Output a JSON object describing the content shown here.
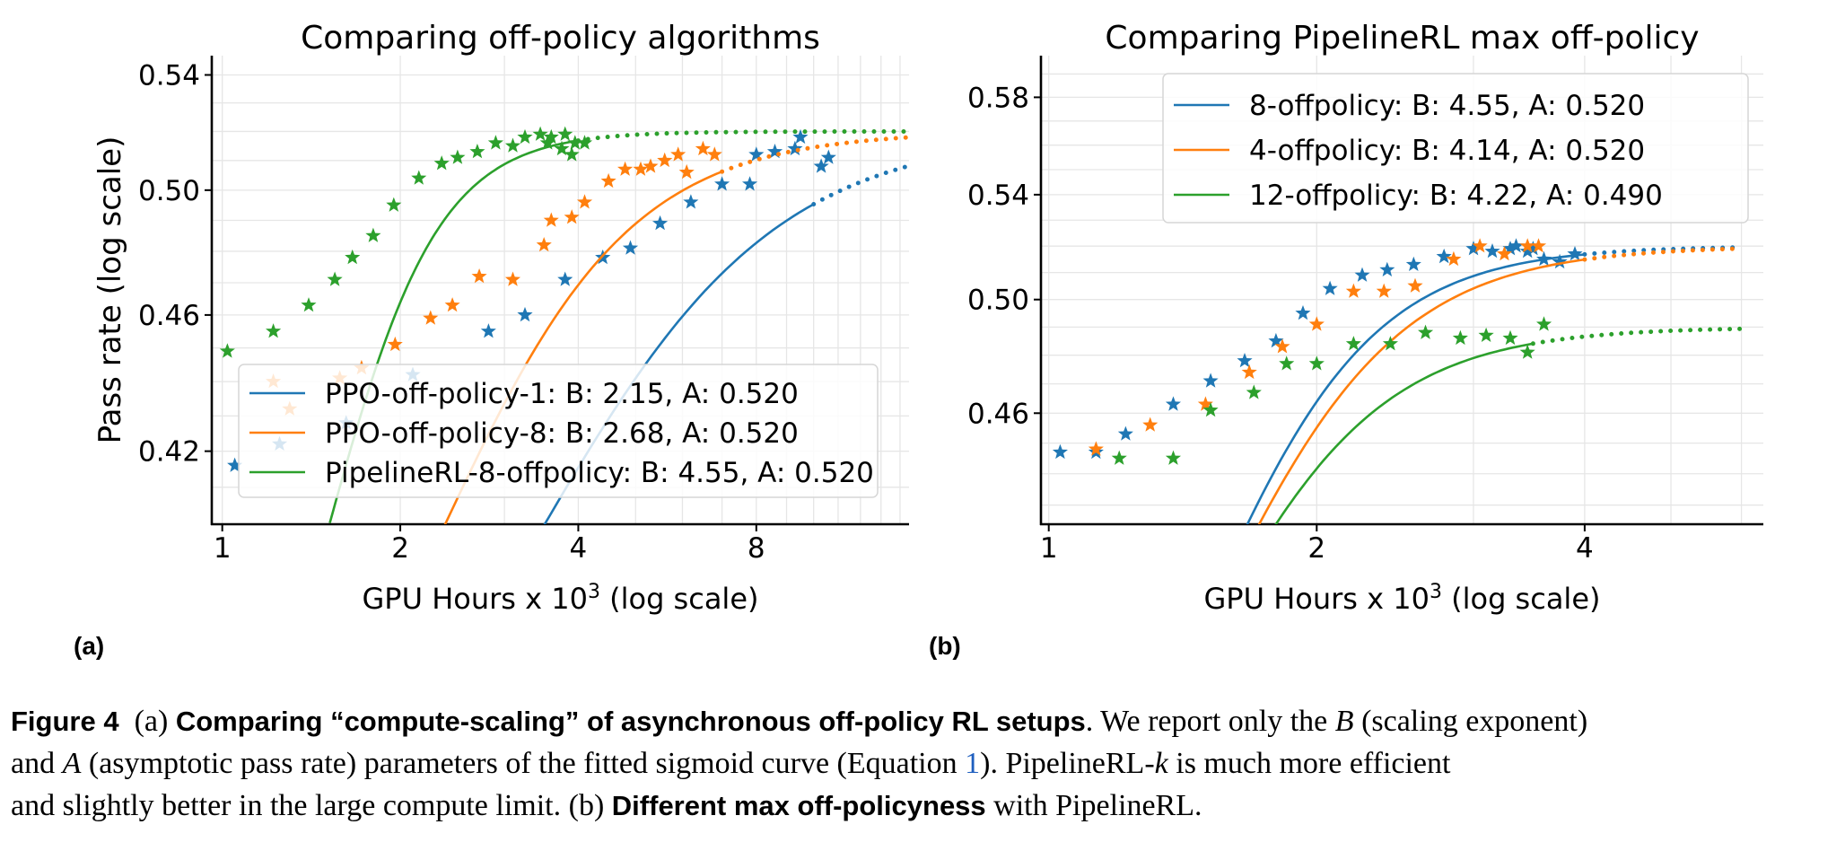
{
  "colors": {
    "blue": "#1f77b4",
    "orange": "#ff7f0e",
    "green": "#2ca02c",
    "grid": "#e6e6e6",
    "axis": "#000000"
  },
  "chart_data": [
    {
      "type": "line",
      "panel": "(a)",
      "title": "Comparing off-policy algorithms",
      "xlabel": "GPU Hours x 10",
      "xlabel_sup": "3",
      "xlabel_suffix": " (log scale)",
      "ylabel": "Pass rate (log scale)",
      "xscale": "log",
      "xlim": [
        0.96,
        14.5
      ],
      "ylim": [
        0.4,
        0.547
      ],
      "xticks": [
        1,
        2,
        4,
        8
      ],
      "xtick_labels": [
        "1",
        "2",
        "4",
        "8"
      ],
      "yticks": [
        0.42,
        0.46,
        0.5,
        0.54
      ],
      "ytick_labels": [
        "0.42",
        "0.46",
        "0.50",
        "0.54"
      ],
      "legend_position": "lower-right",
      "series": [
        {
          "name": "PPO-off-policy-1: B: 2.15, A: 0.520",
          "color": "blue",
          "fit": {
            "A": 0.52,
            "B": 2.15,
            "C50": 3.82,
            "y0": 0.3,
            "fit_start": 1.22,
            "fit_end": 10.0,
            "extrap_end": 14.5
          },
          "points": [
            [
              1.05,
              0.416
            ],
            [
              1.25,
              0.422
            ],
            [
              1.62,
              0.428
            ],
            [
              2.1,
              0.442
            ],
            [
              2.82,
              0.455
            ],
            [
              3.25,
              0.46
            ],
            [
              3.8,
              0.471
            ],
            [
              4.4,
              0.478
            ],
            [
              4.9,
              0.481
            ],
            [
              5.5,
              0.489
            ],
            [
              6.2,
              0.496
            ],
            [
              7.0,
              0.502
            ],
            [
              7.8,
              0.502
            ],
            [
              8.0,
              0.512
            ],
            [
              8.6,
              0.513
            ],
            [
              9.3,
              0.514
            ],
            [
              9.5,
              0.518
            ],
            [
              10.3,
              0.508
            ],
            [
              10.6,
              0.511
            ]
          ]
        },
        {
          "name": "PPO-off-policy-8: B: 2.68, A: 0.520",
          "color": "orange",
          "fit": {
            "A": 0.52,
            "B": 2.68,
            "C50": 2.55,
            "y0": 0.3,
            "fit_start": 1.22,
            "fit_end": 7.0,
            "extrap_end": 14.5
          },
          "points": [
            [
              1.22,
              0.44
            ],
            [
              1.3,
              0.432
            ],
            [
              1.58,
              0.441
            ],
            [
              1.72,
              0.444
            ],
            [
              1.96,
              0.451
            ],
            [
              2.25,
              0.459
            ],
            [
              2.45,
              0.463
            ],
            [
              2.72,
              0.472
            ],
            [
              3.1,
              0.471
            ],
            [
              3.5,
              0.482
            ],
            [
              3.6,
              0.49
            ],
            [
              3.9,
              0.491
            ],
            [
              4.1,
              0.496
            ],
            [
              4.5,
              0.503
            ],
            [
              4.8,
              0.507
            ],
            [
              5.1,
              0.507
            ],
            [
              5.3,
              0.508
            ],
            [
              5.6,
              0.51
            ],
            [
              5.9,
              0.512
            ],
            [
              6.1,
              0.506
            ],
            [
              6.5,
              0.514
            ],
            [
              6.8,
              0.512
            ]
          ]
        },
        {
          "name": "PipelineRL-8-offpolicy: B: 4.55, A: 0.520",
          "color": "green",
          "fit": {
            "A": 0.52,
            "B": 4.55,
            "C50": 1.58,
            "y0": 0.3,
            "fit_start": 1.52,
            "fit_end": 4.0,
            "extrap_end": 14.5
          },
          "points": [
            [
              1.02,
              0.449
            ],
            [
              1.22,
              0.455
            ],
            [
              1.4,
              0.463
            ],
            [
              1.55,
              0.471
            ],
            [
              1.66,
              0.478
            ],
            [
              1.8,
              0.485
            ],
            [
              1.95,
              0.495
            ],
            [
              2.15,
              0.504
            ],
            [
              2.35,
              0.509
            ],
            [
              2.5,
              0.511
            ],
            [
              2.7,
              0.513
            ],
            [
              2.9,
              0.516
            ],
            [
              3.1,
              0.515
            ],
            [
              3.25,
              0.518
            ],
            [
              3.45,
              0.519
            ],
            [
              3.6,
              0.518
            ],
            [
              3.8,
              0.519
            ],
            [
              3.55,
              0.516
            ],
            [
              3.75,
              0.514
            ],
            [
              3.95,
              0.516
            ],
            [
              3.9,
              0.512
            ],
            [
              4.1,
              0.516
            ]
          ]
        }
      ]
    },
    {
      "type": "line",
      "panel": "(b)",
      "title": "Comparing PipelineRL max off-policy",
      "xlabel": "GPU Hours x 10",
      "xlabel_sup": "3",
      "xlabel_suffix": " (log scale)",
      "ylabel": "",
      "xscale": "log",
      "xlim": [
        0.98,
        6.35
      ],
      "ylim": [
        0.424,
        0.598
      ],
      "xticks": [
        1,
        2,
        4
      ],
      "xtick_labels": [
        "1",
        "2",
        "4"
      ],
      "yticks": [
        0.46,
        0.5,
        0.54,
        0.58
      ],
      "ytick_labels": [
        "0.46",
        "0.50",
        "0.54",
        "0.58"
      ],
      "legend_position": "top-right",
      "series": [
        {
          "name": "8-offpolicy: B: 4.55, A: 0.520",
          "color": "blue",
          "fit": {
            "A": 0.52,
            "B": 4.55,
            "C50": 1.58,
            "y0": 0.3,
            "fit_start": 1.52,
            "fit_end": 4.0,
            "extrap_end": 6.0
          },
          "points": [
            [
              1.03,
              0.447
            ],
            [
              1.13,
              0.447
            ],
            [
              1.22,
              0.453
            ],
            [
              1.38,
              0.463
            ],
            [
              1.52,
              0.471
            ],
            [
              1.66,
              0.478
            ],
            [
              1.8,
              0.485
            ],
            [
              1.93,
              0.495
            ],
            [
              2.07,
              0.504
            ],
            [
              2.25,
              0.509
            ],
            [
              2.4,
              0.511
            ],
            [
              2.57,
              0.513
            ],
            [
              2.78,
              0.516
            ],
            [
              3.0,
              0.519
            ],
            [
              3.15,
              0.518
            ],
            [
              3.3,
              0.519
            ],
            [
              3.45,
              0.518
            ],
            [
              3.6,
              0.515
            ],
            [
              3.75,
              0.514
            ],
            [
              3.9,
              0.517
            ],
            [
              3.35,
              0.52
            ],
            [
              3.5,
              0.519
            ]
          ]
        },
        {
          "name": "4-offpolicy: B: 4.14, A: 0.520",
          "color": "orange",
          "fit": {
            "A": 0.52,
            "B": 4.14,
            "C50": 1.62,
            "y0": 0.3,
            "fit_start": 1.52,
            "fit_end": 4.0,
            "extrap_end": 6.0
          },
          "points": [
            [
              1.13,
              0.448
            ],
            [
              1.3,
              0.456
            ],
            [
              1.5,
              0.463
            ],
            [
              1.68,
              0.474
            ],
            [
              1.83,
              0.483
            ],
            [
              2.0,
              0.491
            ],
            [
              2.2,
              0.503
            ],
            [
              2.38,
              0.503
            ],
            [
              2.58,
              0.505
            ],
            [
              2.85,
              0.515
            ],
            [
              3.05,
              0.52
            ],
            [
              3.25,
              0.517
            ],
            [
              3.45,
              0.52
            ],
            [
              3.55,
              0.52
            ]
          ]
        },
        {
          "name": "12-offpolicy: B: 4.22, A: 0.490",
          "color": "green",
          "fit": {
            "A": 0.49,
            "B": 4.22,
            "C50": 1.55,
            "y0": 0.3,
            "fit_start": 1.52,
            "fit_end": 3.5,
            "extrap_end": 6.0
          },
          "points": [
            [
              1.2,
              0.445
            ],
            [
              1.38,
              0.445
            ],
            [
              1.52,
              0.461
            ],
            [
              1.7,
              0.467
            ],
            [
              1.85,
              0.477
            ],
            [
              2.0,
              0.477
            ],
            [
              2.2,
              0.484
            ],
            [
              2.42,
              0.484
            ],
            [
              2.65,
              0.488
            ],
            [
              2.9,
              0.486
            ],
            [
              3.1,
              0.487
            ],
            [
              3.3,
              0.486
            ],
            [
              3.45,
              0.481
            ],
            [
              3.6,
              0.491
            ]
          ]
        }
      ]
    }
  ],
  "panel_labels": {
    "a": "(a)",
    "b": "(b)"
  },
  "caption": {
    "figure_label": "Figure 4",
    "part_a_label": "(a)",
    "part_a_title": "Comparing “compute-scaling” of asynchronous off-policy RL setups",
    "text1": ". We report only the ",
    "var_B": "B",
    "text2": " (scaling exponent)",
    "text3": "and ",
    "var_A": "A",
    "text4": " (asymptotic pass rate) parameters of the fitted sigmoid curve (Equation ",
    "eq_ref": "1",
    "text5": "). PipelineRL-",
    "var_k": "k",
    "text6": " is much more efficient",
    "text7": "and slightly better in the large compute limit. ",
    "part_b_label": "(b)",
    "part_b_title": "Different max off-policyness",
    "text8": " with PipelineRL."
  }
}
